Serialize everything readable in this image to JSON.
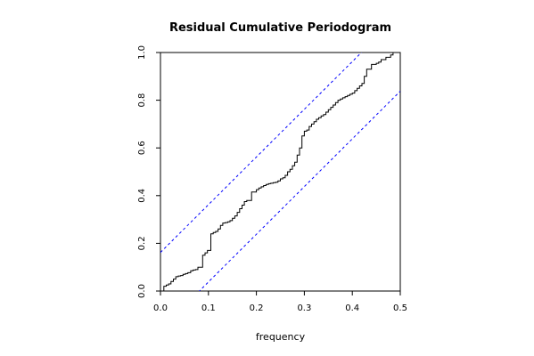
{
  "chart_data": {
    "type": "line",
    "title": "Residual Cumulative Periodogram",
    "xlabel": "frequency",
    "ylabel": "",
    "xlim": [
      0,
      0.5
    ],
    "ylim": [
      0,
      1
    ],
    "x_ticks": [
      "0.0",
      "0.1",
      "0.2",
      "0.3",
      "0.4",
      "0.5"
    ],
    "y_ticks": [
      "0.0",
      "0.2",
      "0.4",
      "0.6",
      "0.8",
      "1.0"
    ],
    "grid": false,
    "colors": {
      "periodogram": "#000000",
      "bounds": "#0000ff"
    },
    "series": [
      {
        "style": "step",
        "x": [
          0.0,
          0.007,
          0.012,
          0.017,
          0.022,
          0.027,
          0.032,
          0.037,
          0.042,
          0.047,
          0.052,
          0.057,
          0.063,
          0.068,
          0.073,
          0.078,
          0.088,
          0.093,
          0.098,
          0.105,
          0.11,
          0.115,
          0.12,
          0.125,
          0.13,
          0.135,
          0.14,
          0.145,
          0.15,
          0.155,
          0.16,
          0.165,
          0.17,
          0.175,
          0.18,
          0.19,
          0.2,
          0.205,
          0.21,
          0.215,
          0.22,
          0.225,
          0.23,
          0.235,
          0.24,
          0.245,
          0.25,
          0.255,
          0.26,
          0.265,
          0.27,
          0.275,
          0.28,
          0.285,
          0.29,
          0.295,
          0.3,
          0.305,
          0.31,
          0.315,
          0.32,
          0.325,
          0.33,
          0.335,
          0.34,
          0.345,
          0.35,
          0.355,
          0.36,
          0.365,
          0.37,
          0.375,
          0.38,
          0.385,
          0.39,
          0.395,
          0.4,
          0.405,
          0.41,
          0.415,
          0.42,
          0.425,
          0.43,
          0.44,
          0.45,
          0.455,
          0.46,
          0.47,
          0.48,
          0.485,
          0.49,
          0.495
        ],
        "y": [
          0.0,
          0.02,
          0.025,
          0.03,
          0.04,
          0.05,
          0.06,
          0.063,
          0.065,
          0.07,
          0.073,
          0.077,
          0.085,
          0.088,
          0.09,
          0.1,
          0.15,
          0.16,
          0.17,
          0.24,
          0.245,
          0.25,
          0.26,
          0.275,
          0.285,
          0.287,
          0.29,
          0.295,
          0.305,
          0.315,
          0.33,
          0.345,
          0.36,
          0.375,
          0.38,
          0.415,
          0.425,
          0.432,
          0.437,
          0.442,
          0.447,
          0.45,
          0.452,
          0.454,
          0.456,
          0.462,
          0.47,
          0.475,
          0.485,
          0.5,
          0.51,
          0.525,
          0.54,
          0.57,
          0.6,
          0.65,
          0.67,
          0.675,
          0.69,
          0.7,
          0.71,
          0.72,
          0.727,
          0.734,
          0.74,
          0.75,
          0.76,
          0.77,
          0.78,
          0.79,
          0.8,
          0.805,
          0.81,
          0.815,
          0.82,
          0.825,
          0.83,
          0.84,
          0.85,
          0.86,
          0.87,
          0.9,
          0.93,
          0.95,
          0.955,
          0.96,
          0.97,
          0.98,
          0.99,
          1.0,
          1.0,
          1.0
        ]
      },
      {
        "style": "dashed",
        "x": [
          0.0,
          0.5
        ],
        "y": [
          0.162,
          1.162
        ]
      },
      {
        "style": "dashed",
        "x": [
          0.0,
          0.5
        ],
        "y": [
          -0.162,
          0.838
        ]
      }
    ]
  }
}
